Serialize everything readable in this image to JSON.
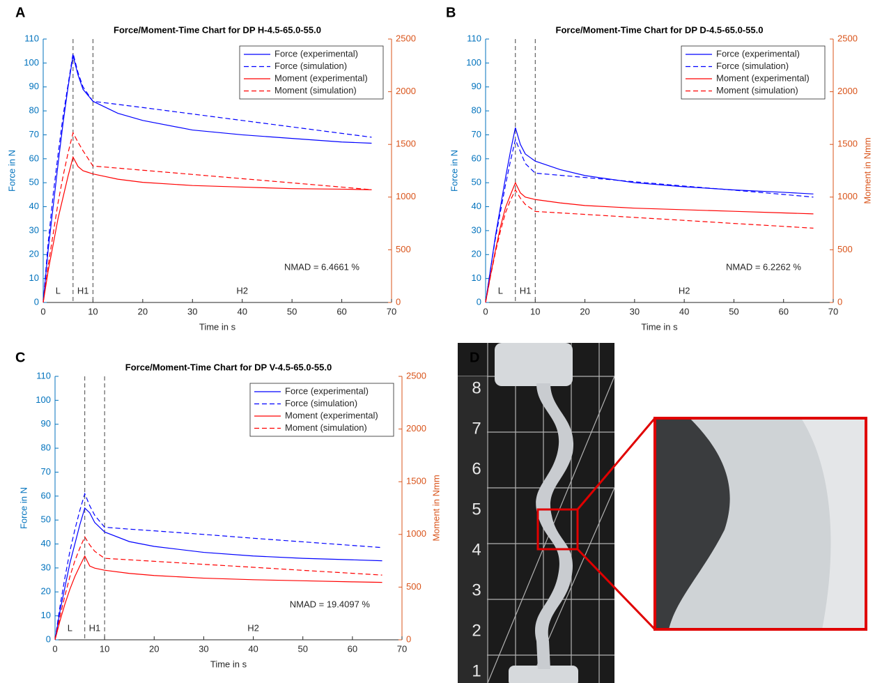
{
  "panel_labels": [
    "A",
    "B",
    "C",
    "D"
  ],
  "photo": {
    "ruler_labels": [
      "8",
      "7",
      "6",
      "5",
      "4",
      "3",
      "2",
      "1"
    ]
  },
  "chart_data": [
    {
      "type": "line",
      "title": "Force/Moment-Time Chart for DP H-4.5-65.0-55.0",
      "xlabel": "Time in s",
      "ylabel": "Force in N",
      "annotation": "NMAD =  6.4661 %",
      "phase_labels": [
        "L",
        "H1",
        "H2"
      ],
      "vlines": [
        6,
        10
      ],
      "legend": "upper right",
      "grid": false,
      "ycolor": "#0072bd",
      "y2color": "#d95319",
      "xlim": [
        0,
        70
      ],
      "xticks": [
        0,
        10,
        20,
        30,
        40,
        50,
        60,
        70
      ],
      "ylim": [
        0,
        110
      ],
      "yticks": [
        0,
        10,
        20,
        30,
        40,
        50,
        60,
        70,
        80,
        90,
        100,
        110
      ],
      "y2lim": [
        0,
        2500
      ],
      "y2ticks": [
        0,
        500,
        1000,
        1500,
        2000,
        2500
      ],
      "x": [
        0,
        1,
        2,
        3,
        4,
        5,
        6,
        7,
        8,
        10,
        15,
        20,
        30,
        40,
        50,
        60,
        66
      ],
      "series": [
        {
          "name": "Force (experimental)",
          "color": "#0000ff",
          "style": "solid",
          "axis": "y",
          "values": [
            0,
            22,
            40,
            58,
            75,
            90,
            103,
            95,
            89,
            84,
            79,
            76,
            72,
            70,
            68.5,
            67,
            66.5
          ]
        },
        {
          "name": "Force (simulation)",
          "color": "#0000ff",
          "style": "dashed",
          "axis": "y",
          "values": [
            0,
            25,
            45,
            62,
            78,
            91,
            104,
            96,
            90,
            84,
            82.7,
            81.4,
            78.7,
            76,
            73.3,
            70.6,
            69
          ]
        },
        {
          "name": "Moment (experimental)",
          "color": "#ff0000",
          "style": "solid",
          "axis": "y2",
          "values": [
            0,
            300,
            550,
            800,
            1000,
            1200,
            1380,
            1290,
            1250,
            1220,
            1170,
            1140,
            1110,
            1095,
            1080,
            1075,
            1070
          ]
        },
        {
          "name": "Moment (simulation)",
          "color": "#ff0000",
          "style": "dashed",
          "axis": "y2",
          "values": [
            0,
            350,
            650,
            950,
            1200,
            1420,
            1610,
            1520,
            1440,
            1295,
            1275,
            1255,
            1215,
            1175,
            1135,
            1095,
            1070
          ]
        }
      ]
    },
    {
      "type": "line",
      "title": "Force/Moment-Time Chart for DP D-4.5-65.0-55.0",
      "xlabel": "Time in s",
      "ylabel": "Force in N",
      "y2label": "Moment in Nmm",
      "annotation": "NMAD =  6.2262 %",
      "phase_labels": [
        "L",
        "H1",
        "H2"
      ],
      "vlines": [
        6,
        10
      ],
      "legend": "upper right",
      "grid": false,
      "ycolor": "#0072bd",
      "y2color": "#d95319",
      "xlim": [
        0,
        70
      ],
      "xticks": [
        0,
        10,
        20,
        30,
        40,
        50,
        60,
        70
      ],
      "ylim": [
        0,
        110
      ],
      "yticks": [
        0,
        10,
        20,
        30,
        40,
        50,
        60,
        70,
        80,
        90,
        100,
        110
      ],
      "y2lim": [
        0,
        2500
      ],
      "y2ticks": [
        0,
        500,
        1000,
        1500,
        2000,
        2500
      ],
      "x": [
        0,
        1,
        2,
        3,
        4,
        5,
        6,
        7,
        8,
        10,
        15,
        20,
        30,
        40,
        50,
        60,
        66
      ],
      "series": [
        {
          "name": "Force (experimental)",
          "color": "#0000ff",
          "style": "solid",
          "axis": "y",
          "values": [
            0,
            14,
            28,
            40,
            52,
            63,
            73,
            66,
            62,
            59,
            55.5,
            53,
            50,
            48.3,
            47,
            46,
            45.3
          ]
        },
        {
          "name": "Force (simulation)",
          "color": "#0000ff",
          "style": "dashed",
          "axis": "y",
          "values": [
            0,
            14,
            27,
            38,
            49,
            59,
            68,
            63,
            58,
            54,
            53.1,
            52.2,
            50.4,
            48.6,
            46.9,
            45.1,
            44
          ]
        },
        {
          "name": "Moment (experimental)",
          "color": "#ff0000",
          "style": "solid",
          "axis": "y2",
          "values": [
            0,
            260,
            500,
            720,
            900,
            1020,
            1136,
            1040,
            1000,
            977,
            945,
            920,
            895,
            880,
            865,
            850,
            841
          ]
        },
        {
          "name": "Moment (simulation)",
          "color": "#ff0000",
          "style": "dashed",
          "axis": "y2",
          "values": [
            0,
            250,
            480,
            680,
            850,
            970,
            1068,
            990,
            930,
            864,
            850,
            836,
            807,
            779,
            750,
            722,
            705
          ]
        }
      ]
    },
    {
      "type": "line",
      "title": "Force/Moment-Time Chart for DP V-4.5-65.0-55.0",
      "xlabel": "Time in s",
      "ylabel": "Force in N",
      "y2label": "Moment in Nmm",
      "annotation": "NMAD =  19.4097 %",
      "phase_labels": [
        "L",
        "H1",
        "H2"
      ],
      "vlines": [
        6,
        10
      ],
      "legend": "upper right",
      "grid": false,
      "ycolor": "#0072bd",
      "y2color": "#d95319",
      "xlim": [
        0,
        70
      ],
      "xticks": [
        0,
        10,
        20,
        30,
        40,
        50,
        60,
        70
      ],
      "ylim": [
        0,
        110
      ],
      "yticks": [
        0,
        10,
        20,
        30,
        40,
        50,
        60,
        70,
        80,
        90,
        100,
        110
      ],
      "y2lim": [
        0,
        2500
      ],
      "y2ticks": [
        0,
        500,
        1000,
        1500,
        2000,
        2500
      ],
      "x": [
        0,
        1,
        2,
        3,
        4,
        5,
        6,
        7,
        8,
        10,
        15,
        20,
        30,
        40,
        50,
        60,
        66
      ],
      "series": [
        {
          "name": "Force (experimental)",
          "color": "#0000ff",
          "style": "solid",
          "axis": "y",
          "values": [
            0,
            12,
            22,
            32,
            40,
            48,
            55,
            53,
            49,
            45,
            41,
            39,
            36.5,
            35,
            34,
            33.4,
            33
          ]
        },
        {
          "name": "Force (simulation)",
          "color": "#0000ff",
          "style": "dashed",
          "axis": "y",
          "values": [
            0,
            14,
            26,
            37,
            46,
            54,
            61,
            56,
            52,
            47,
            46.2,
            45.5,
            44,
            42.4,
            40.9,
            39.4,
            38.5
          ]
        },
        {
          "name": "Moment (experimental)",
          "color": "#ff0000",
          "style": "solid",
          "axis": "y2",
          "values": [
            0,
            180,
            340,
            480,
            600,
            700,
            795,
            700,
            680,
            660,
            630,
            610,
            585,
            570,
            560,
            550,
            545
          ]
        },
        {
          "name": "Moment (simulation)",
          "color": "#ff0000",
          "style": "dashed",
          "axis": "y2",
          "values": [
            0,
            220,
            420,
            600,
            750,
            870,
            977,
            900,
            840,
            773,
            759,
            745,
            716,
            688,
            659,
            631,
            614
          ]
        }
      ]
    }
  ]
}
